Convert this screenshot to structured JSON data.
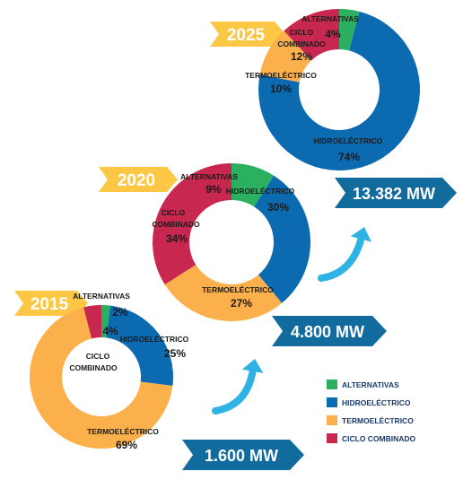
{
  "colors": {
    "alternativas": "#2bb061",
    "hidroelectrico": "#0c6ab1",
    "termoelectrico": "#fbb04b",
    "ciclo_combinado": "#c8284f",
    "year_banner": "#fcc745",
    "mw_banner": "#126b9d",
    "arrow": "#2eb3e4"
  },
  "legend": [
    {
      "key": "alternativas",
      "label": "ALTERNATIVAS"
    },
    {
      "key": "hidroelectrico",
      "label": "HIDROELÉCTRICO"
    },
    {
      "key": "termoelectrico",
      "label": "TERMOELÉCTRICO"
    },
    {
      "key": "ciclo_combinado",
      "label": "CICLO COMBINADO"
    }
  ],
  "chart_data": [
    {
      "type": "pie",
      "year": "2015",
      "capacity": "1.600 MW",
      "slices": [
        {
          "key": "alternativas",
          "name": "ALTERNATIVAS",
          "value": 2,
          "label": "2%"
        },
        {
          "key": "hidroelectrico",
          "name": "HIDROELÉCTRICO",
          "value": 25,
          "label": "25%"
        },
        {
          "key": "termoelectrico",
          "name": "TERMOELÉCTRICO",
          "value": 69,
          "label": "69%"
        },
        {
          "key": "ciclo_combinado",
          "name": "CICLO COMBINADO",
          "value": 4,
          "label": "4%"
        }
      ]
    },
    {
      "type": "pie",
      "year": "2020",
      "capacity": "4.800 MW",
      "slices": [
        {
          "key": "alternativas",
          "name": "ALTERNATIVAS",
          "value": 9,
          "label": "9%"
        },
        {
          "key": "hidroelectrico",
          "name": "HIDROELÉCTRICO",
          "value": 30,
          "label": "30%"
        },
        {
          "key": "termoelectrico",
          "name": "TERMOELÉCTRICO",
          "value": 27,
          "label": "27%"
        },
        {
          "key": "ciclo_combinado",
          "name": "CICLO COMBINADO",
          "value": 34,
          "label": "34%"
        }
      ]
    },
    {
      "type": "pie",
      "year": "2025",
      "capacity": "13.382 MW",
      "slices": [
        {
          "key": "alternativas",
          "name": "ALTERNATIVAS",
          "value": 4,
          "label": "4%"
        },
        {
          "key": "hidroelectrico",
          "name": "HIDROELÉCTRICO",
          "value": 74,
          "label": "74%"
        },
        {
          "key": "termoelectrico",
          "name": "TERMOELÉCTRICO",
          "value": 10,
          "label": "10%"
        },
        {
          "key": "ciclo_combinado",
          "name": "CICLO COMBINADO",
          "value": 12,
          "label": "12%"
        }
      ]
    }
  ]
}
